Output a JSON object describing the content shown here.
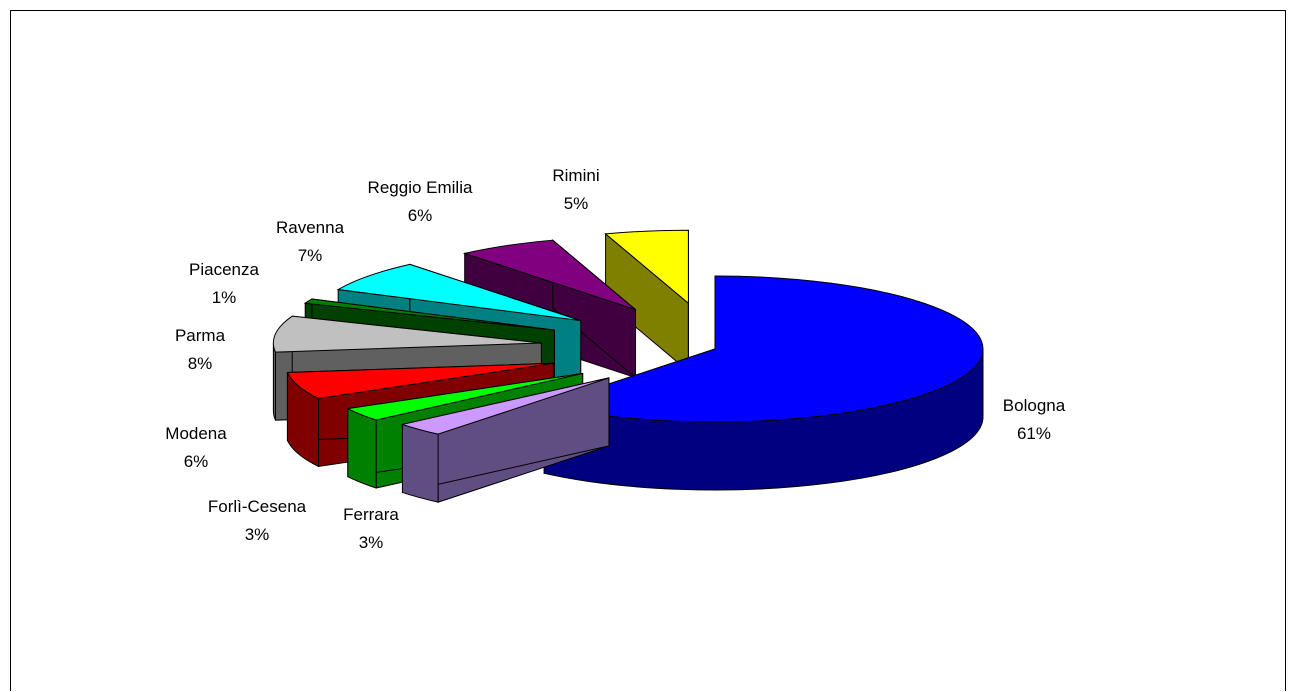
{
  "chart_data": {
    "type": "pie",
    "style": "3d-exploded",
    "slices": [
      {
        "label": "Bologna",
        "percent_label": "61%",
        "value": 61,
        "colors": {
          "top": "#0000FF",
          "side": "#000080"
        }
      },
      {
        "label": "Ferrara",
        "percent_label": "3%",
        "value": 3,
        "colors": {
          "top": "#CC99FF",
          "side": "#604E82"
        }
      },
      {
        "label": "Forlì-Cesena",
        "percent_label": "3%",
        "value": 3,
        "colors": {
          "top": "#00FF00",
          "side": "#008000"
        }
      },
      {
        "label": "Modena",
        "percent_label": "6%",
        "value": 6,
        "colors": {
          "top": "#FF0000",
          "side": "#800000"
        }
      },
      {
        "label": "Parma",
        "percent_label": "8%",
        "value": 8,
        "colors": {
          "top": "#C0C0C0",
          "side": "#606060"
        }
      },
      {
        "label": "Piacenza",
        "percent_label": "1%",
        "value": 1,
        "colors": {
          "top": "#008000",
          "side": "#004000"
        }
      },
      {
        "label": "Ravenna",
        "percent_label": "7%",
        "value": 7,
        "colors": {
          "top": "#00FFFF",
          "side": "#008080"
        }
      },
      {
        "label": "Reggio Emilia",
        "percent_label": "6%",
        "value": 6,
        "colors": {
          "top": "#800080",
          "side": "#400040"
        }
      },
      {
        "label": "Rimini",
        "percent_label": "5%",
        "value": 5,
        "colors": {
          "top": "#FFFF00",
          "side": "#808000"
        }
      }
    ],
    "legend": "none"
  }
}
